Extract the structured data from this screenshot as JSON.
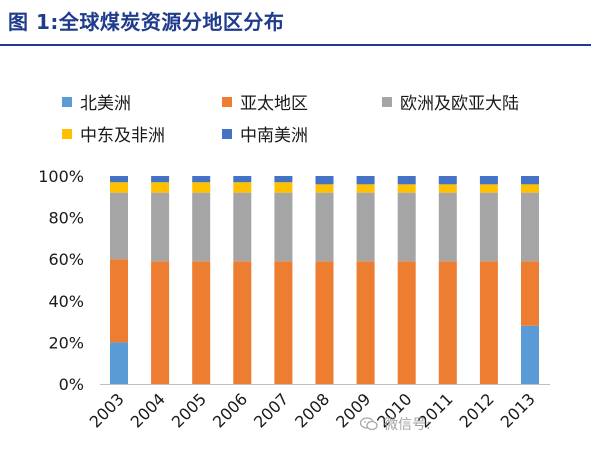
{
  "title": "图 1:全球煤炭资源分地区分布",
  "legend": [
    {
      "label": "北美洲",
      "color": "#5b9bd5"
    },
    {
      "label": "亚太地区",
      "color": "#ed7d31"
    },
    {
      "label": "欧洲及欧亚大陆",
      "color": "#a5a5a5"
    },
    {
      "label": "中东及非洲",
      "color": "#ffc000"
    },
    {
      "label": "中南美洲",
      "color": "#4472c4"
    }
  ],
  "watermark": "微信号: ",
  "chart_data": {
    "type": "bar",
    "stacked": true,
    "percent": true,
    "categories": [
      "2003",
      "2004",
      "2005",
      "2006",
      "2007",
      "2008",
      "2009",
      "2010",
      "2011",
      "2012",
      "2013"
    ],
    "series": [
      {
        "name": "北美洲",
        "color": "#5b9bd5",
        "values": [
          20,
          0,
          0,
          0,
          0,
          0,
          0,
          0,
          0,
          0,
          28
        ]
      },
      {
        "name": "亚太地区",
        "color": "#ed7d31",
        "values": [
          40,
          59,
          59,
          59,
          59,
          59,
          59,
          59,
          59,
          59,
          31
        ]
      },
      {
        "name": "欧洲及欧亚大陆",
        "color": "#a5a5a5",
        "values": [
          32,
          33,
          33,
          33,
          33,
          33,
          33,
          33,
          33,
          33,
          33
        ]
      },
      {
        "name": "中东及非洲",
        "color": "#ffc000",
        "values": [
          5,
          5,
          5,
          5,
          5,
          4,
          4,
          4,
          4,
          4,
          4
        ]
      },
      {
        "name": "中南美洲",
        "color": "#4472c4",
        "values": [
          3,
          3,
          3,
          3,
          3,
          4,
          4,
          4,
          4,
          4,
          4
        ]
      }
    ],
    "yticks": [
      "0%",
      "20%",
      "40%",
      "60%",
      "80%",
      "100%"
    ],
    "ylim": [
      0,
      100
    ],
    "grid": false,
    "legend_position": "top"
  }
}
